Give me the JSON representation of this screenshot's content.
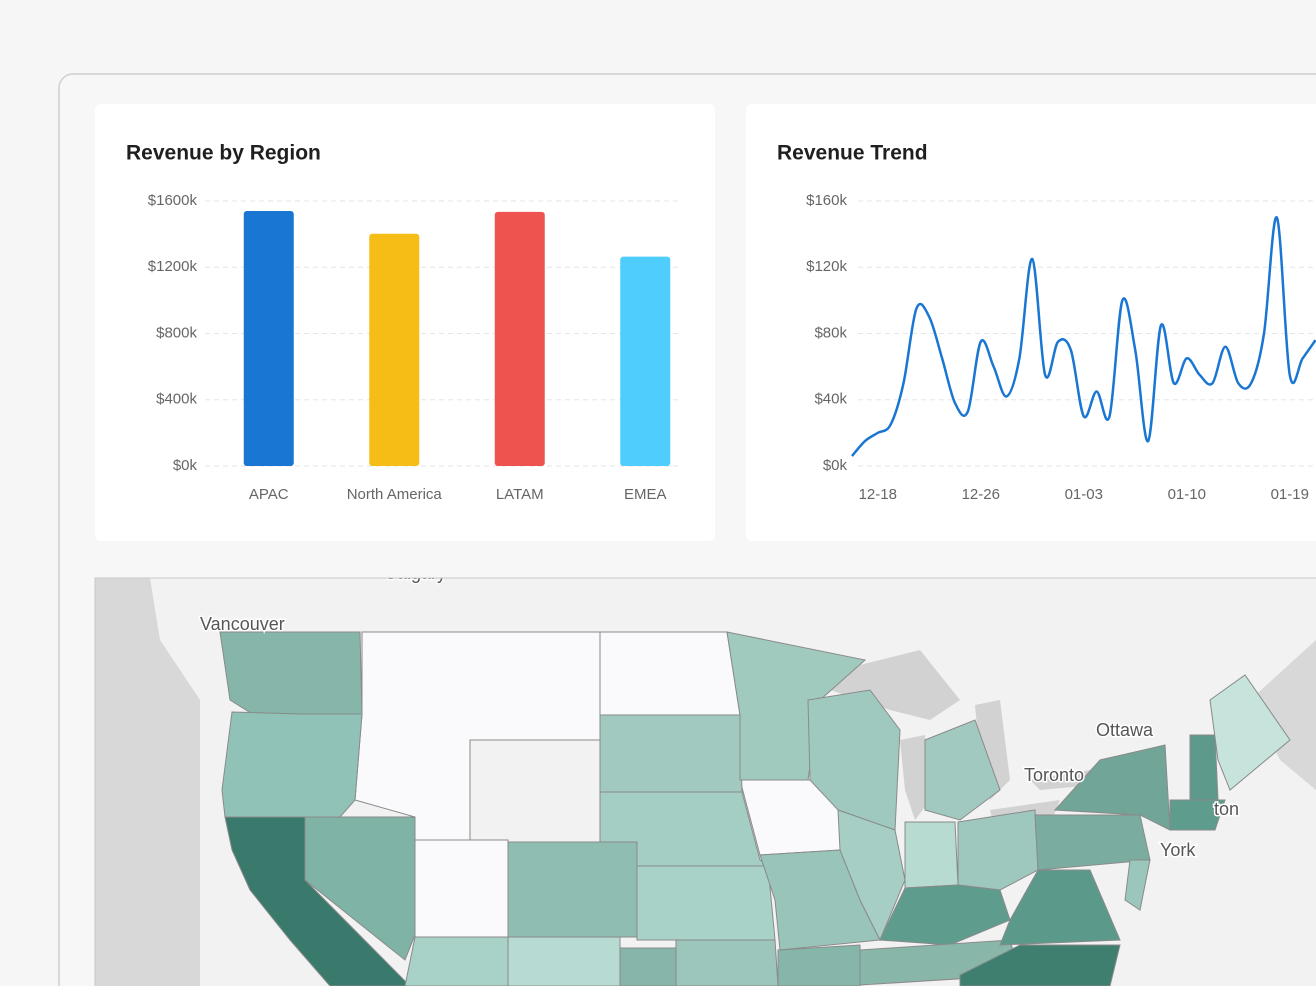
{
  "chart_data": [
    {
      "type": "bar",
      "title": "Revenue by Region",
      "categories": [
        "APAC",
        "North America",
        "LATAM",
        "EMEA"
      ],
      "values": [
        1540,
        1402,
        1534,
        1264
      ],
      "colors": [
        "#1976d2",
        "#f6bd16",
        "#ef5350",
        "#4fcdfd"
      ],
      "ylim": [
        0,
        1600
      ],
      "yticks": [
        {
          "value": 0,
          "label": "$0k"
        },
        {
          "value": 400,
          "label": "$400k"
        },
        {
          "value": 800,
          "label": "$800k"
        },
        {
          "value": 1200,
          "label": "$1200k"
        },
        {
          "value": 1600,
          "label": "$1600k"
        }
      ],
      "grid": true
    },
    {
      "type": "line",
      "title": "Revenue Trend",
      "categories": [
        null,
        null,
        "12-18",
        null,
        null,
        null,
        null,
        null,
        null,
        null,
        "12-26",
        null,
        null,
        null,
        null,
        null,
        null,
        null,
        "01-03",
        null,
        null,
        null,
        null,
        null,
        null,
        null,
        "01-10",
        null,
        null,
        null,
        null,
        null,
        null,
        null,
        "01-19",
        null,
        null
      ],
      "values": [
        6,
        15,
        20,
        25,
        50,
        95,
        90,
        65,
        38,
        33,
        75,
        60,
        42,
        65,
        125,
        55,
        75,
        70,
        30,
        45,
        30,
        100,
        70,
        15,
        85,
        50,
        65,
        55,
        50,
        72,
        50,
        50,
        80,
        150,
        55,
        65,
        76
      ],
      "color": "#1976d2",
      "ylim": [
        0,
        160
      ],
      "yticks": [
        {
          "value": 0,
          "label": "$0k"
        },
        {
          "value": 40,
          "label": "$40k"
        },
        {
          "value": 80,
          "label": "$80k"
        },
        {
          "value": 120,
          "label": "$120k"
        },
        {
          "value": 160,
          "label": "$160k"
        }
      ],
      "grid": true
    }
  ],
  "map": {
    "labels": [
      "Calgary",
      "Vancouver",
      "Ottawa",
      "Toronto",
      "ton",
      "York"
    ]
  }
}
